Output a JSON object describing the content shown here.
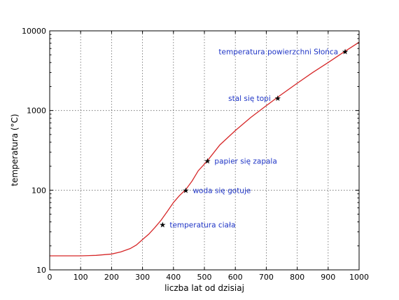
{
  "chart_data": {
    "type": "line",
    "xlabel": "liczba lat od dzisiaj",
    "ylabel": "temperatura (°C)",
    "xlim": [
      0,
      1000
    ],
    "ylim": [
      10,
      10000
    ],
    "yscale": "log",
    "grid": true,
    "x_ticks": [
      0,
      100,
      200,
      300,
      400,
      500,
      600,
      700,
      800,
      900,
      1000
    ],
    "x_tick_labels": [
      "0",
      "100",
      "200",
      "300",
      "400",
      "500",
      "600",
      "700",
      "800",
      "900",
      "1000"
    ],
    "y_ticks": [
      10,
      100,
      1000,
      10000
    ],
    "y_tick_labels": [
      "10",
      "100",
      "1000",
      "10000"
    ],
    "line_color": "#d62728",
    "marker_color": "#1f35c6",
    "annotation_color": "#1f35c6",
    "series": [
      {
        "x": [
          0,
          100,
          150,
          200,
          230,
          260,
          280,
          300,
          320,
          340,
          360,
          380,
          400,
          420,
          440,
          460,
          480,
          510,
          550,
          600,
          650,
          700,
          740,
          800,
          850,
          900,
          950,
          1000
        ],
        "y": [
          15,
          15,
          15.2,
          15.8,
          16.8,
          18.5,
          20.5,
          24,
          28,
          34,
          42,
          54,
          70,
          86,
          102,
          130,
          175,
          235,
          370,
          560,
          820,
          1150,
          1500,
          2200,
          3000,
          4000,
          5400,
          7200
        ]
      }
    ],
    "points": [
      {
        "label": "temperatura ciała",
        "x": 365,
        "y": 37
      },
      {
        "label": "woda się gotuje",
        "x": 440,
        "y": 100
      },
      {
        "label": "papier się zapala",
        "x": 510,
        "y": 233
      },
      {
        "label": "stal się topi",
        "x": 737,
        "y": 1430
      },
      {
        "label": "temperatura powierzchni Słońca",
        "x": 955,
        "y": 5500
      }
    ]
  }
}
